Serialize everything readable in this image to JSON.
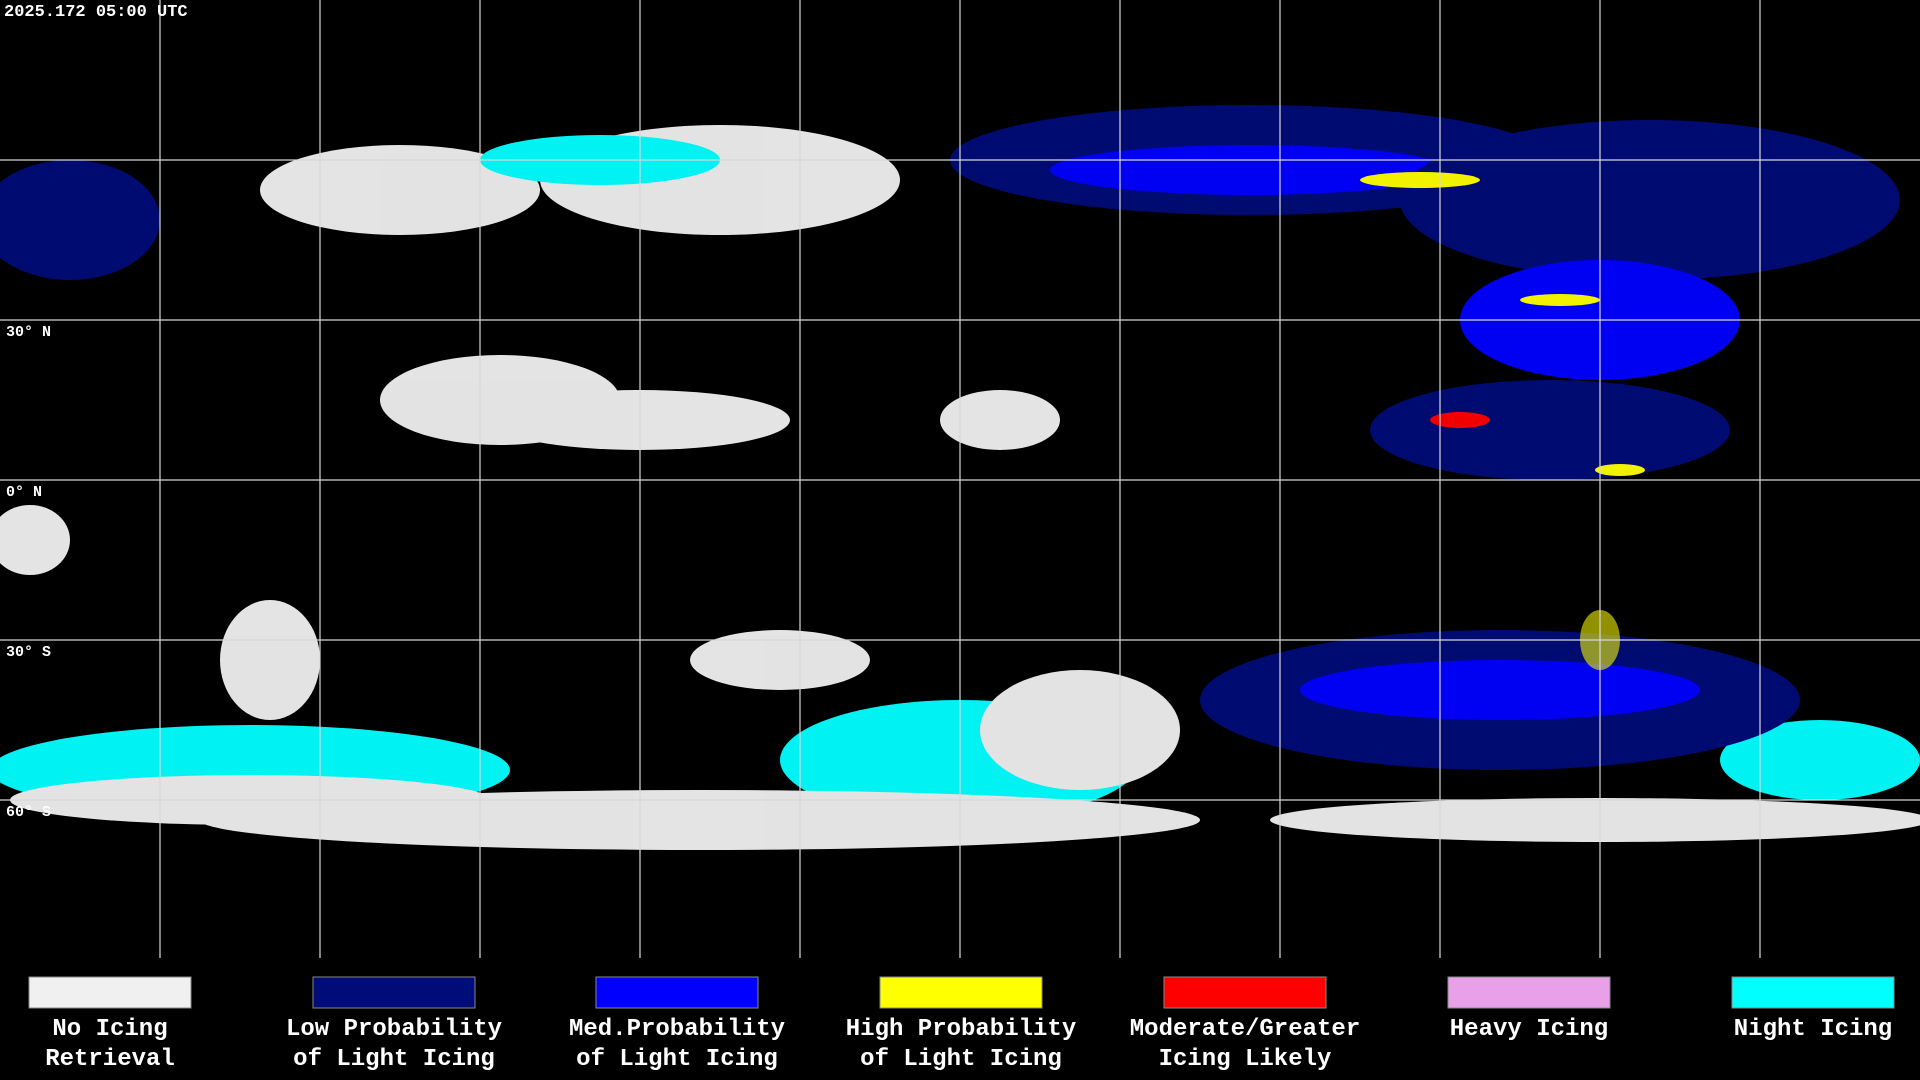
{
  "header": {
    "timestamp": "2025.172 05:00 UTC"
  },
  "lat_labels": [
    "30° N",
    "0° N",
    "30° S",
    "60° S"
  ],
  "legend": [
    {
      "color": "#f0f0f0",
      "lines": [
        "No Icing",
        "Retrieval"
      ]
    },
    {
      "color": "#000c78",
      "lines": [
        "Low Probability",
        "of Light Icing"
      ]
    },
    {
      "color": "#0000ff",
      "lines": [
        "Med.Probability",
        "of Light Icing"
      ]
    },
    {
      "color": "#ffff00",
      "lines": [
        "High Probability",
        "of Light Icing"
      ]
    },
    {
      "color": "#ff0000",
      "lines": [
        "Moderate/Greater",
        "Icing Likely"
      ]
    },
    {
      "color": "#e8a0e8",
      "lines": [
        "Heavy Icing"
      ]
    },
    {
      "color": "#00ffff",
      "lines": [
        "Night Icing"
      ]
    }
  ]
}
